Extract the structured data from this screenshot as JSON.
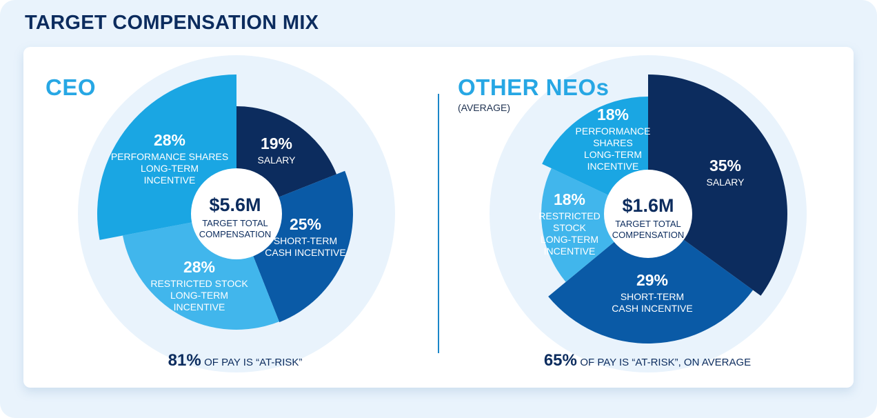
{
  "title": "TARGET COMPENSATION MIX",
  "colors": {
    "salary": "#0c2c5e",
    "short_term": "#0a5aa6",
    "restricted": "#41b6ec",
    "performance": "#1aa6e3",
    "background": "#e9f3fc",
    "center": "#ffffff"
  },
  "chart_data": [
    {
      "type": "pie",
      "title": "CEO",
      "center_value": "$5.6M",
      "center_label": "TARGET TOTAL COMPENSATION",
      "slices": [
        {
          "key": "salary",
          "name": "SALARY",
          "value": 19,
          "pct_label": "19%",
          "color": "#0c2c5e"
        },
        {
          "key": "short_term",
          "name": "SHORT-TERM CASH INCENTIVE",
          "value": 25,
          "pct_label": "25%",
          "color": "#0a5aa6"
        },
        {
          "key": "restricted",
          "name": "RESTRICTED STOCK LONG-TERM INCENTIVE",
          "value": 28,
          "pct_label": "28%",
          "color": "#41b6ec"
        },
        {
          "key": "performance",
          "name": "PERFORMANCE SHARES LONG-TERM INCENTIVE",
          "value": 28,
          "pct_label": "28%",
          "color": "#1aa6e3"
        }
      ],
      "footnote_pct": "81%",
      "footnote_text": "OF PAY IS “AT-RISK”"
    },
    {
      "type": "pie",
      "title": "OTHER NEOs",
      "subtitle": "(AVERAGE)",
      "center_value": "$1.6M",
      "center_label": "TARGET TOTAL COMPENSATION",
      "slices": [
        {
          "key": "salary",
          "name": "SALARY",
          "value": 35,
          "pct_label": "35%",
          "color": "#0c2c5e"
        },
        {
          "key": "short_term",
          "name": "SHORT-TERM CASH INCENTIVE",
          "value": 29,
          "pct_label": "29%",
          "color": "#0a5aa6"
        },
        {
          "key": "restricted",
          "name": "RESTRICTED STOCK LONG-TERM INCENTIVE",
          "value": 18,
          "pct_label": "18%",
          "color": "#41b6ec"
        },
        {
          "key": "performance",
          "name": "PERFORMANCE SHARES LONG-TERM INCENTIVE",
          "value": 18,
          "pct_label": "18%",
          "color": "#1aa6e3"
        }
      ],
      "footnote_pct": "65%",
      "footnote_text": "OF PAY IS “AT-RISK”, ON AVERAGE"
    }
  ],
  "ceo_labels": {
    "salary_line1": "SALARY",
    "short_line1": "SHORT-TERM",
    "short_line2": "CASH INCENTIVE",
    "restricted_line1": "RESTRICTED STOCK",
    "restricted_line2": "LONG-TERM",
    "restricted_line3": "INCENTIVE",
    "performance_line1": "PERFORMANCE SHARES",
    "performance_line2": "LONG-TERM",
    "performance_line3": "INCENTIVE",
    "center_line1": "TARGET TOTAL",
    "center_line2": "COMPENSATION"
  },
  "neo_labels": {
    "salary_line1": "SALARY",
    "short_line1": "SHORT-TERM",
    "short_line2": "CASH INCENTIVE",
    "restricted_line1": "RESTRICTED",
    "restricted_line2": "STOCK",
    "restricted_line3": "LONG-TERM",
    "restricted_line4": "INCENTIVE",
    "performance_line1": "PERFORMANCE",
    "performance_line2": "SHARES",
    "performance_line3": "LONG-TERM",
    "performance_line4": "INCENTIVE",
    "center_line1": "TARGET TOTAL",
    "center_line2": "COMPENSATION"
  }
}
